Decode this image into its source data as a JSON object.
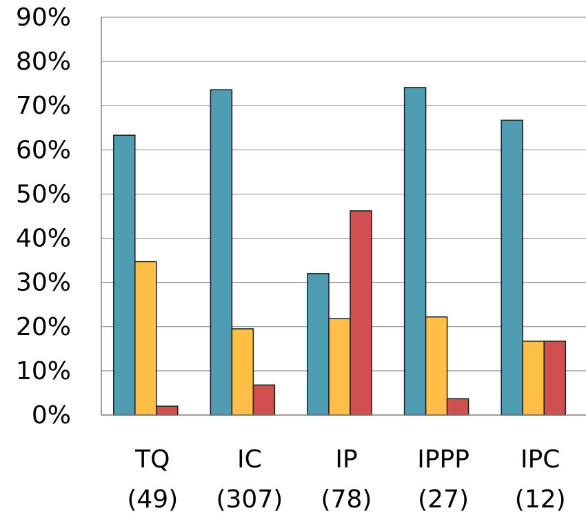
{
  "chart_data": {
    "type": "bar",
    "categories": [
      "TQ\n(49)",
      "IC\n(307)",
      "IP\n(78)",
      "IPPP\n(27)",
      "IPC\n(12)"
    ],
    "category_lines": [
      [
        "TQ",
        "(49)"
      ],
      [
        "IC",
        "(307)"
      ],
      [
        "IP",
        "(78)"
      ],
      [
        "IPPP",
        "(27)"
      ],
      [
        "IPC",
        "(12)"
      ]
    ],
    "series": [
      {
        "values": [
          63.3,
          73.6,
          32.0,
          74.1,
          66.7
        ],
        "color": "#4f9db3"
      },
      {
        "values": [
          34.7,
          19.5,
          21.8,
          22.2,
          16.7
        ],
        "color": "#ffbf47"
      },
      {
        "values": [
          2.0,
          6.8,
          46.2,
          3.7,
          16.7
        ],
        "color": "#d04f4f"
      }
    ],
    "ylim": [
      0,
      90
    ],
    "yticks": [
      "0%",
      "10%",
      "20%",
      "30%",
      "40%",
      "50%",
      "60%",
      "70%",
      "80%",
      "90%"
    ],
    "grid": true,
    "title": "",
    "xlabel": "",
    "ylabel": ""
  }
}
